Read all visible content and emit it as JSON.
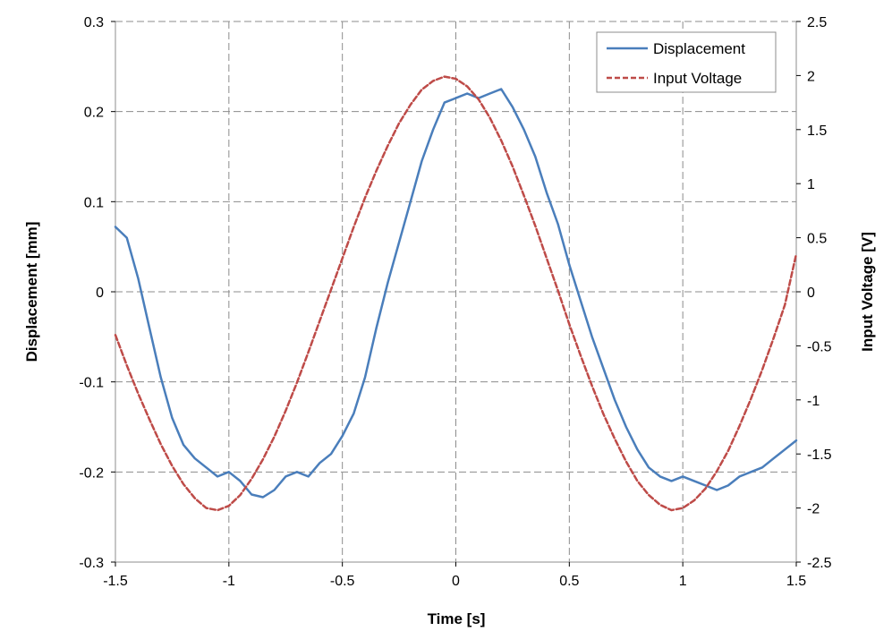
{
  "chart_data": {
    "type": "line",
    "title": "",
    "xlabel": "Time [s]",
    "ylabel": "Displacement [mm]",
    "y2label": "Input Voltage [V]",
    "xlim": [
      -1.5,
      1.5
    ],
    "ylim": [
      -0.3,
      0.3
    ],
    "y2lim": [
      -2.5,
      2.5
    ],
    "x_ticks": [
      "-1.5",
      "-1",
      "-0.5",
      "0",
      "0.5",
      "1",
      "1.5"
    ],
    "y_ticks": [
      "-0.3",
      "-0.2",
      "-0.1",
      "0",
      "0.1",
      "0.2",
      "0.3"
    ],
    "y2_ticks": [
      "-2.5",
      "-2",
      "-1.5",
      "-1",
      "-0.5",
      "0",
      "0.5",
      "1",
      "1.5",
      "2",
      "2.5"
    ],
    "grid": true,
    "legend_position": "top-right",
    "series": [
      {
        "name": "Displacement",
        "axis": "left",
        "color": "#4a7ebb",
        "style": "solid",
        "x": [
          -1.5,
          -1.45,
          -1.4,
          -1.35,
          -1.3,
          -1.25,
          -1.2,
          -1.15,
          -1.1,
          -1.05,
          -1.0,
          -0.95,
          -0.9,
          -0.85,
          -0.8,
          -0.75,
          -0.7,
          -0.65,
          -0.6,
          -0.55,
          -0.5,
          -0.45,
          -0.4,
          -0.35,
          -0.3,
          -0.25,
          -0.2,
          -0.15,
          -0.1,
          -0.05,
          0.0,
          0.05,
          0.1,
          0.15,
          0.2,
          0.25,
          0.3,
          0.35,
          0.4,
          0.45,
          0.5,
          0.55,
          0.6,
          0.65,
          0.7,
          0.75,
          0.8,
          0.85,
          0.9,
          0.95,
          1.0,
          1.05,
          1.1,
          1.15,
          1.2,
          1.25,
          1.3,
          1.35,
          1.4,
          1.45,
          1.5
        ],
        "y": [
          0.072,
          0.06,
          0.015,
          -0.04,
          -0.095,
          -0.14,
          -0.17,
          -0.185,
          -0.195,
          -0.205,
          -0.2,
          -0.21,
          -0.225,
          -0.228,
          -0.22,
          -0.205,
          -0.2,
          -0.205,
          -0.19,
          -0.18,
          -0.16,
          -0.135,
          -0.095,
          -0.04,
          0.01,
          0.055,
          0.1,
          0.145,
          0.18,
          0.21,
          0.215,
          0.22,
          0.215,
          0.22,
          0.225,
          0.205,
          0.18,
          0.15,
          0.11,
          0.075,
          0.03,
          -0.01,
          -0.05,
          -0.085,
          -0.12,
          -0.15,
          -0.175,
          -0.195,
          -0.205,
          -0.21,
          -0.205,
          -0.21,
          -0.215,
          -0.22,
          -0.215,
          -0.205,
          -0.2,
          -0.195,
          -0.185,
          -0.175,
          -0.165
        ]
      },
      {
        "name": "Input Voltage",
        "axis": "right",
        "color": "#be4b48",
        "style": "dashed",
        "x": [
          -1.5,
          -1.45,
          -1.4,
          -1.35,
          -1.3,
          -1.25,
          -1.2,
          -1.15,
          -1.1,
          -1.05,
          -1.0,
          -0.95,
          -0.9,
          -0.85,
          -0.8,
          -0.75,
          -0.7,
          -0.65,
          -0.6,
          -0.55,
          -0.5,
          -0.45,
          -0.4,
          -0.35,
          -0.3,
          -0.25,
          -0.2,
          -0.15,
          -0.1,
          -0.05,
          0.0,
          0.05,
          0.1,
          0.15,
          0.2,
          0.25,
          0.3,
          0.35,
          0.4,
          0.45,
          0.5,
          0.55,
          0.6,
          0.65,
          0.7,
          0.75,
          0.8,
          0.85,
          0.9,
          0.95,
          1.0,
          1.05,
          1.1,
          1.15,
          1.2,
          1.25,
          1.3,
          1.35,
          1.4,
          1.45,
          1.5
        ],
        "y": [
          -0.4,
          -0.68,
          -0.94,
          -1.18,
          -1.41,
          -1.61,
          -1.78,
          -1.91,
          -2.0,
          -2.02,
          -1.98,
          -1.88,
          -1.73,
          -1.55,
          -1.34,
          -1.1,
          -0.84,
          -0.56,
          -0.27,
          0.02,
          0.31,
          0.6,
          0.87,
          1.12,
          1.35,
          1.56,
          1.73,
          1.87,
          1.95,
          1.99,
          1.97,
          1.9,
          1.78,
          1.61,
          1.4,
          1.16,
          0.89,
          0.61,
          0.31,
          0.01,
          -0.3,
          -0.59,
          -0.87,
          -1.13,
          -1.36,
          -1.57,
          -1.75,
          -1.88,
          -1.97,
          -2.02,
          -2.0,
          -1.93,
          -1.82,
          -1.66,
          -1.47,
          -1.24,
          -0.99,
          -0.72,
          -0.43,
          -0.12,
          0.35
        ]
      }
    ]
  }
}
